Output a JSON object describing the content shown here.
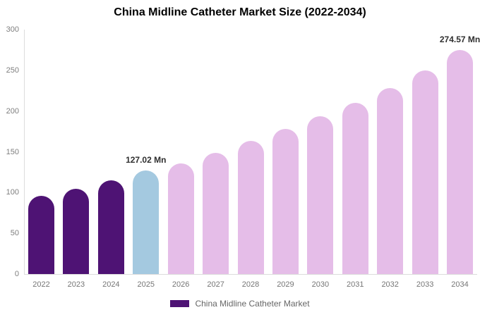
{
  "chart_data": {
    "type": "bar",
    "title": "China Midline Catheter Market Size (2022-2034)",
    "xlabel": "",
    "ylabel": "",
    "unit": "Mn",
    "categories": [
      "2022",
      "2023",
      "2024",
      "2025",
      "2026",
      "2027",
      "2028",
      "2029",
      "2030",
      "2031",
      "2032",
      "2033",
      "2034"
    ],
    "values": [
      96,
      105,
      115,
      127.02,
      136,
      149,
      163,
      178,
      194,
      210,
      228,
      250,
      274.57
    ],
    "ylim": [
      0,
      300
    ],
    "yticks": [
      0,
      50,
      100,
      150,
      200,
      250,
      300
    ],
    "grid": false,
    "legend_position": "bottom",
    "series_name": "China Midline Catheter Market",
    "bar_roles": [
      "historical",
      "historical",
      "historical",
      "highlight",
      "forecast",
      "forecast",
      "forecast",
      "forecast",
      "forecast",
      "forecast",
      "forecast",
      "forecast",
      "forecast"
    ],
    "data_labels": [
      {
        "category": "2025",
        "text": "127.02 Mn"
      },
      {
        "category": "2034",
        "text": "274.57 Mn"
      }
    ]
  },
  "legend": {
    "label": "China Midline Catheter Market"
  },
  "colors": {
    "historical": "#4E1374",
    "highlight": "#A4C9E0",
    "forecast": "#E5BDE8",
    "axis_line": "#DCDCDC",
    "tick_text": "#7E7E7E",
    "x_tick_text": "#757575",
    "data_label_text": "#2F2F2F",
    "legend_text": "#666666",
    "title_text": "#000000",
    "background": "#FFFFFF"
  }
}
